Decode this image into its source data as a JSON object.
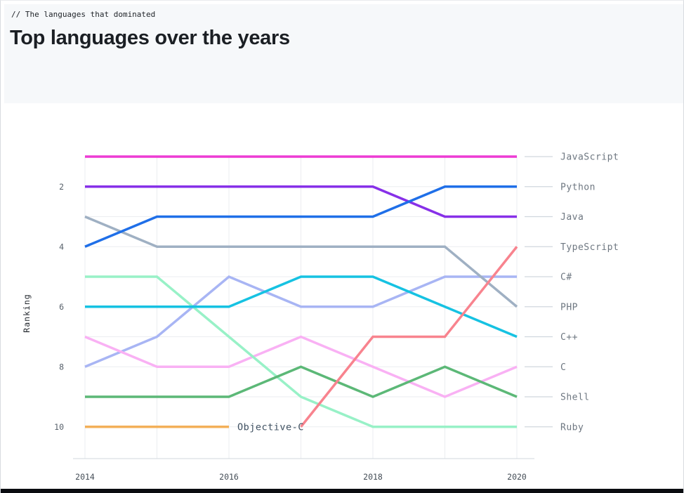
{
  "page": {
    "comment": "// The languages that dominated",
    "title": "Top languages over the years"
  },
  "chart_data": {
    "type": "line",
    "subtype": "bump-ranking",
    "title": "Top languages over the years",
    "ylabel": "Ranking",
    "x": [
      2014,
      2015,
      2016,
      2017,
      2018,
      2019,
      2020
    ],
    "x_tick_labels": [
      "2014",
      "2016",
      "2018",
      "2020"
    ],
    "x_ticks": [
      2014,
      2016,
      2018,
      2020
    ],
    "y_tick_labels": [
      "2",
      "4",
      "6",
      "8",
      "10"
    ],
    "y_ticks": [
      2,
      4,
      6,
      8,
      10
    ],
    "y_axis": {
      "min": 1,
      "max": 10,
      "inverted": true,
      "meaning": "ranking, 1 = most popular"
    },
    "grid": "on",
    "legend_position": "right",
    "series": [
      {
        "name": "JavaScript",
        "color": "#ed3bd4",
        "ranks": [
          1,
          1,
          1,
          1,
          1,
          1,
          1
        ]
      },
      {
        "name": "Python",
        "color": "#1f6fe8",
        "ranks": [
          4,
          3,
          3,
          3,
          3,
          2,
          2
        ]
      },
      {
        "name": "Java",
        "color": "#8730e8",
        "ranks": [
          2,
          2,
          2,
          2,
          2,
          3,
          3
        ]
      },
      {
        "name": "TypeScript",
        "color": "#f8838e",
        "ranks": [
          null,
          null,
          null,
          10,
          7,
          7,
          4
        ]
      },
      {
        "name": "C#",
        "color": "#a8b5f4",
        "ranks": [
          8,
          7,
          5,
          6,
          6,
          5,
          5
        ]
      },
      {
        "name": "PHP",
        "color": "#9fb0c3",
        "ranks": [
          3,
          4,
          4,
          4,
          4,
          4,
          6
        ]
      },
      {
        "name": "C++",
        "color": "#16c2e2",
        "ranks": [
          6,
          6,
          6,
          5,
          5,
          6,
          7
        ]
      },
      {
        "name": "C",
        "color": "#f9b1f4",
        "ranks": [
          7,
          8,
          8,
          7,
          8,
          9,
          8
        ]
      },
      {
        "name": "Shell",
        "color": "#5cb877",
        "ranks": [
          9,
          9,
          9,
          8,
          9,
          8,
          9
        ]
      },
      {
        "name": "Ruby",
        "color": "#98f1c7",
        "ranks": [
          5,
          5,
          7,
          9,
          10,
          10,
          10
        ]
      },
      {
        "name": "Objective-C",
        "color": "#f3b059",
        "ranks": [
          10,
          10,
          10,
          null,
          null,
          null,
          null
        ]
      }
    ],
    "right_legend_labels": [
      "JavaScript",
      "Python",
      "Java",
      "TypeScript",
      "C#",
      "PHP",
      "C++",
      "C",
      "Shell",
      "Ruby"
    ],
    "inline_annotation": {
      "label": "Objective-C",
      "at_year": 2016,
      "rank": 10
    }
  },
  "colors": {
    "header_bg": "#f6f8fa",
    "grid": "#ebedf0",
    "axis": "#d0d7de",
    "tick_text": "#57606a",
    "x_tick_text": "#444d56",
    "legend_text": "#6e7781",
    "legend_dash": "#d0d7de",
    "annotation_text": "#3f5061",
    "title_text": "#1b1f24",
    "bottom_bar": "#0a0c10"
  }
}
